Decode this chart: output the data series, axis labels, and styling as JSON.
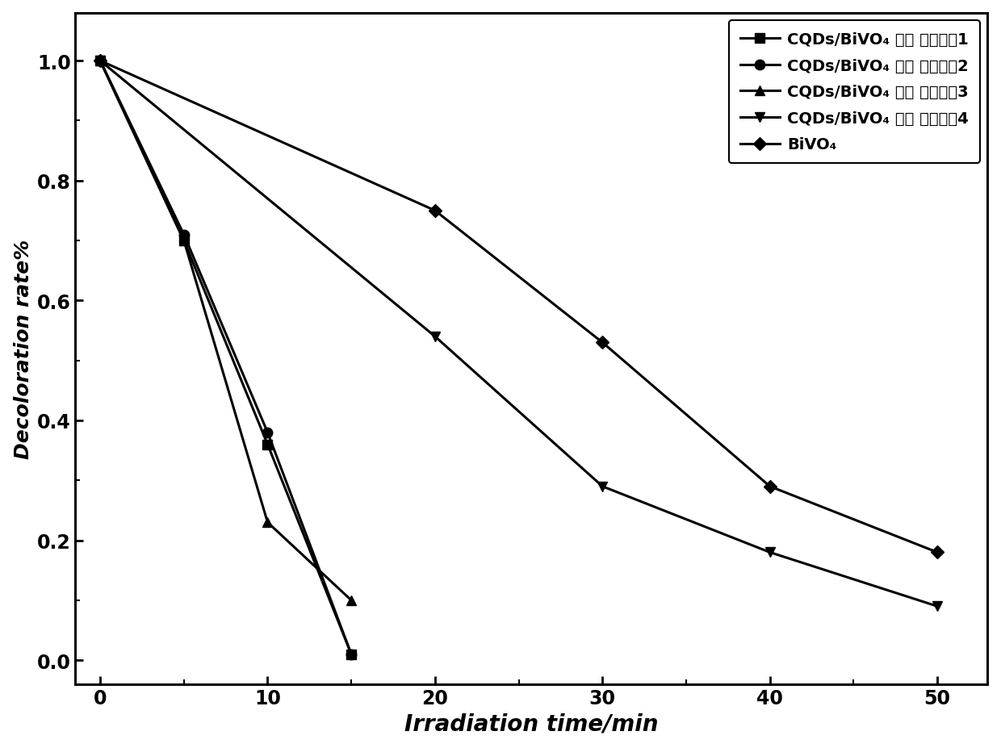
{
  "series": [
    {
      "label": "CQDs/BiVO₄ 纳米 复合材枙1",
      "x": [
        0,
        5,
        10,
        15
      ],
      "y": [
        1.0,
        0.7,
        0.36,
        0.01
      ],
      "marker": "s",
      "markersize": 9,
      "linewidth": 2.2,
      "color": "#000000"
    },
    {
      "label": "CQDs/BiVO₄ 纳米 复合材枙2",
      "x": [
        0,
        5,
        10,
        15
      ],
      "y": [
        1.0,
        0.71,
        0.38,
        0.01
      ],
      "marker": "o",
      "markersize": 9,
      "linewidth": 2.2,
      "color": "#000000"
    },
    {
      "label": "CQDs/BiVO₄ 纳米 复合材枙3",
      "x": [
        0,
        5,
        10,
        15
      ],
      "y": [
        1.0,
        0.7,
        0.23,
        0.1
      ],
      "marker": "^",
      "markersize": 9,
      "linewidth": 2.2,
      "color": "#000000"
    },
    {
      "label": "CQDs/BiVO₄ 纳米 复合材枙4",
      "x": [
        0,
        20,
        30,
        40,
        50
      ],
      "y": [
        1.0,
        0.54,
        0.29,
        0.18,
        0.09
      ],
      "marker": "v",
      "markersize": 9,
      "linewidth": 2.2,
      "color": "#000000"
    },
    {
      "label": "BiVO₄",
      "x": [
        0,
        20,
        30,
        40,
        50
      ],
      "y": [
        1.0,
        0.75,
        0.53,
        0.29,
        0.18
      ],
      "marker": "D",
      "markersize": 8,
      "linewidth": 2.2,
      "color": "#000000"
    }
  ],
  "xlabel": "Irradiation time/min",
  "ylabel": "Decoloration rate%",
  "xlim": [
    -1.5,
    53
  ],
  "ylim": [
    -0.04,
    1.08
  ],
  "xticks": [
    0,
    10,
    20,
    30,
    40,
    50
  ],
  "yticks": [
    0.0,
    0.2,
    0.4,
    0.6,
    0.8,
    1.0
  ],
  "xlabel_fontsize": 20,
  "ylabel_fontsize": 18,
  "tick_fontsize": 17,
  "legend_fontsize": 14,
  "background_color": "#ffffff"
}
